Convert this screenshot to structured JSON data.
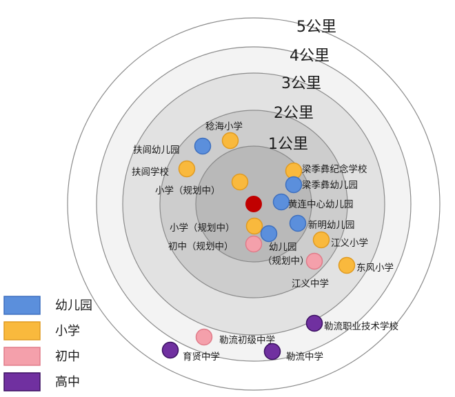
{
  "rings": [
    {
      "label": "5公里",
      "fill": "#ffffff"
    },
    {
      "label": "4公里",
      "fill": "#f3f3f3"
    },
    {
      "label": "3公里",
      "fill": "#e2e2e2"
    },
    {
      "label": "2公里",
      "fill": "#cdcdcd"
    },
    {
      "label": "1公里",
      "fill": "#b9b9b9"
    }
  ],
  "center": {
    "color": "#c00000"
  },
  "categories": {
    "kindergarten": {
      "label": "幼儿园",
      "fill": "#5b8fdc",
      "stroke": "#3d6fbf"
    },
    "primary": {
      "label": "小学",
      "fill": "#f9b93d",
      "stroke": "#e09a20"
    },
    "junior": {
      "label": "初中",
      "fill": "#f4a0ab",
      "stroke": "#e07b89"
    },
    "senior": {
      "label": "高中",
      "fill": "#7030a0",
      "stroke": "#3a1060"
    }
  },
  "legend": [
    "kindergarten",
    "primary",
    "junior",
    "senior"
  ],
  "points": [
    {
      "label": "稔海小学",
      "category": "primary"
    },
    {
      "label": "扶闾幼儿园",
      "category": "kindergarten"
    },
    {
      "label": "扶闾学校",
      "category": "primary"
    },
    {
      "label": "小学（规划中）",
      "category": "primary"
    },
    {
      "label": "梁季彝纪念学校",
      "category": "primary"
    },
    {
      "label": "梁季彝幼儿园",
      "category": "kindergarten"
    },
    {
      "label": "黄连中心幼儿园",
      "category": "kindergarten"
    },
    {
      "label": "新明幼儿园",
      "category": "kindergarten"
    },
    {
      "label": "小学（规划中）",
      "category": "primary"
    },
    {
      "label": "幼儿园（规划中）",
      "category": "kindergarten"
    },
    {
      "label": "初中（规划中）",
      "category": "junior"
    },
    {
      "label": "江义小学",
      "category": "primary"
    },
    {
      "label": "江义中学",
      "category": "junior"
    },
    {
      "label": "东风小学",
      "category": "primary"
    },
    {
      "label": "勒流职业技术学校",
      "category": "senior"
    },
    {
      "label": "勒流初级中学",
      "category": "junior"
    },
    {
      "label": "育贤中学",
      "category": "senior"
    },
    {
      "label": "勒流中学",
      "category": "senior"
    }
  ]
}
